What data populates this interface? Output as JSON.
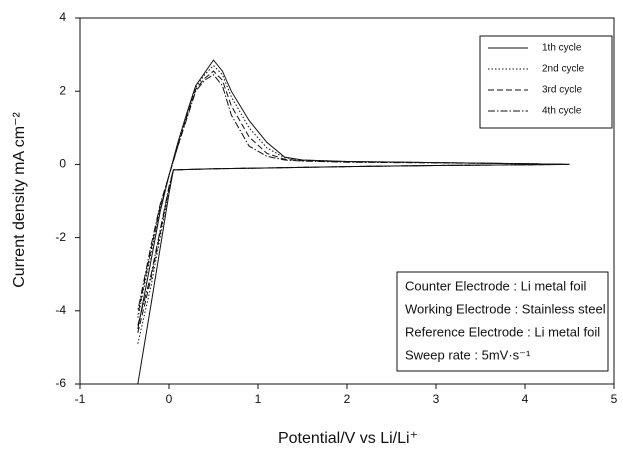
{
  "chart_data": {
    "type": "line",
    "xlabel": "Potential/V vs Li/Li⁺",
    "ylabel": "Current density mA cm⁻²",
    "xlim": [
      -1,
      5
    ],
    "ylim": [
      -6,
      4
    ],
    "xticks": [
      -1,
      0,
      1,
      2,
      3,
      4,
      5
    ],
    "yticks": [
      -6,
      -4,
      -2,
      0,
      2,
      4
    ],
    "grid": false,
    "legend": "upper right",
    "series": [
      {
        "name": "1th cycle",
        "color": "#111111",
        "dash": "solid",
        "x": [
          -0.35,
          -0.2,
          0,
          0.05,
          0.5,
          1,
          2,
          3,
          4,
          4.5,
          4,
          3,
          2,
          1.5,
          1.3,
          1.1,
          0.9,
          0.7,
          0.6,
          0.5,
          0.4,
          0.3,
          0.2,
          0.1,
          0,
          -0.1,
          -0.2,
          -0.35
        ],
        "values": [
          -6,
          -3.8,
          -0.8,
          -0.15,
          -0.12,
          -0.1,
          -0.06,
          -0.03,
          -0.01,
          0,
          0.02,
          0.05,
          0.08,
          0.12,
          0.2,
          0.6,
          1.2,
          2.0,
          2.55,
          2.85,
          2.5,
          2.15,
          1.4,
          0.6,
          -0.3,
          -1.3,
          -2.6,
          -4.5
        ]
      },
      {
        "name": "2nd cycle",
        "color": "#111111",
        "dash": "dotted",
        "x": [
          -0.35,
          -0.2,
          0,
          0.05,
          0.5,
          1,
          2,
          3,
          4,
          4.5,
          4,
          3,
          2,
          1.5,
          1.3,
          1.1,
          0.9,
          0.7,
          0.6,
          0.5,
          0.4,
          0.3,
          0.2,
          0.1,
          0,
          -0.1,
          -0.2,
          -0.35
        ],
        "values": [
          -4.9,
          -3.3,
          -0.7,
          -0.15,
          -0.12,
          -0.1,
          -0.06,
          -0.03,
          -0.01,
          0,
          0.02,
          0.05,
          0.08,
          0.12,
          0.18,
          0.45,
          1.0,
          1.85,
          2.45,
          2.7,
          2.45,
          2.1,
          1.35,
          0.55,
          -0.3,
          -1.2,
          -2.4,
          -4.2
        ]
      },
      {
        "name": "3rd cycle",
        "color": "#111111",
        "dash": "dashed",
        "x": [
          -0.35,
          -0.2,
          0,
          0.05,
          0.5,
          1,
          2,
          3,
          4,
          4.5,
          4,
          3,
          2,
          1.5,
          1.3,
          1.1,
          0.9,
          0.7,
          0.6,
          0.5,
          0.4,
          0.3,
          0.2,
          0.1,
          0,
          -0.1,
          -0.2,
          -0.35
        ],
        "values": [
          -4.6,
          -3.1,
          -0.65,
          -0.15,
          -0.12,
          -0.1,
          -0.06,
          -0.03,
          -0.01,
          0,
          0.02,
          0.05,
          0.07,
          0.1,
          0.14,
          0.3,
          0.75,
          1.6,
          2.3,
          2.55,
          2.35,
          2.05,
          1.3,
          0.5,
          -0.3,
          -1.15,
          -2.3,
          -4.1
        ]
      },
      {
        "name": "4th cycle",
        "color": "#111111",
        "dash": "dashdot",
        "x": [
          -0.35,
          -0.2,
          0,
          0.05,
          0.5,
          1,
          2,
          3,
          4,
          4.5,
          4,
          3,
          2,
          1.5,
          1.3,
          1.1,
          0.9,
          0.7,
          0.6,
          0.5,
          0.4,
          0.3,
          0.2,
          0.1,
          0,
          -0.1,
          -0.2,
          -0.35
        ],
        "values": [
          -4.4,
          -3.0,
          -0.6,
          -0.15,
          -0.12,
          -0.1,
          -0.06,
          -0.03,
          -0.01,
          0,
          0.02,
          0.04,
          0.06,
          0.09,
          0.12,
          0.22,
          0.5,
          1.35,
          2.15,
          2.45,
          2.3,
          2.0,
          1.25,
          0.5,
          -0.3,
          -1.1,
          -2.2,
          -4.0
        ]
      }
    ],
    "annotations": [
      "Counter Electrode : Li metal foil",
      "Working Electrode : Stainless steel",
      "Reference Electrode : Li metal foil",
      "Sweep rate : 5mV·s⁻¹"
    ]
  }
}
